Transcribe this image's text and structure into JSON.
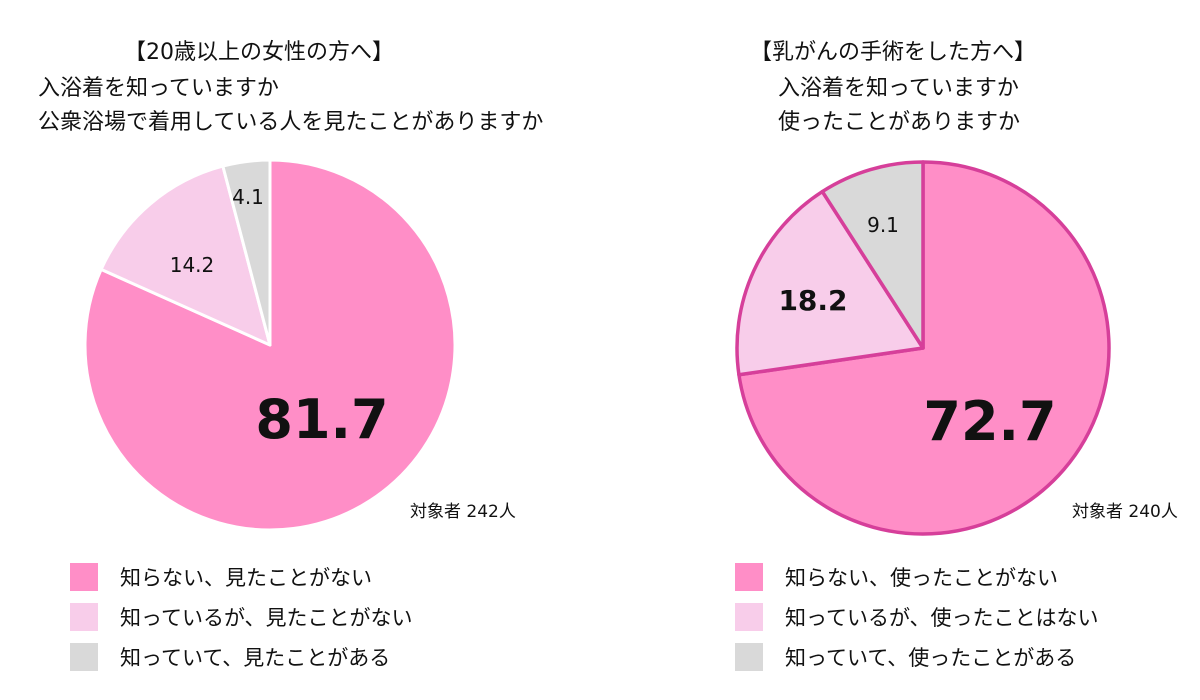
{
  "chart_data": [
    {
      "type": "pie",
      "title": "【20歳以上の女性の方へ】",
      "subtitle_lines": [
        "入浴着を知っていますか",
        "公衆浴場で着用している人を見たことがありますか"
      ],
      "sample_note": "対象者 242人",
      "slices": [
        {
          "label": "知らない、見たことがない",
          "value": 81.7,
          "value_label": "81.7",
          "color": "#ff8ec7"
        },
        {
          "label": "知っているが、見たことがない",
          "value": 14.2,
          "value_label": "14.2",
          "color": "#f8cdea"
        },
        {
          "label": "知っていて、見たことがある",
          "value": 4.1,
          "value_label": "4.1",
          "color": "#d9d9d9"
        }
      ]
    },
    {
      "type": "pie",
      "title": "【乳がんの手術をした方へ】",
      "subtitle_lines": [
        "入浴着を知っていますか",
        "使ったことがありますか"
      ],
      "sample_note": "対象者 240人",
      "slices": [
        {
          "label": "知らない、使ったことがない",
          "value": 72.7,
          "value_label": "72.7",
          "color": "#ff8ec7"
        },
        {
          "label": "知っているが、使ったことはない",
          "value": 18.2,
          "value_label": "18.2",
          "color": "#f8cdea"
        },
        {
          "label": "知っていて、使ったことがある",
          "value": 9.1,
          "value_label": "9.1",
          "color": "#d9d9d9"
        }
      ]
    }
  ]
}
